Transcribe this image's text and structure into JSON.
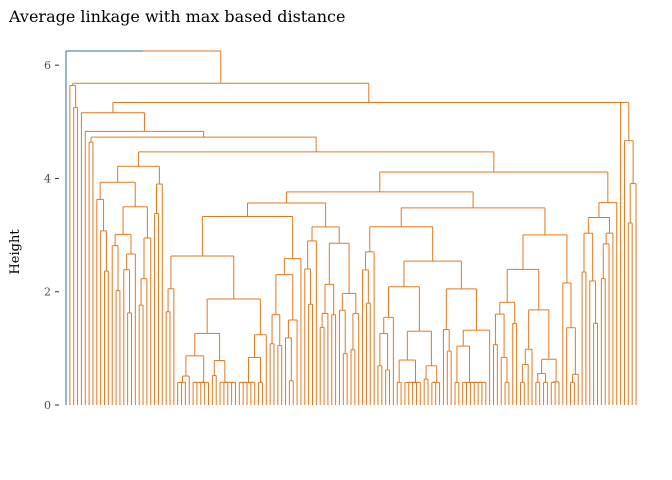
{
  "chart_data": {
    "type": "dendrogram",
    "title": "Average linkage with max based distance",
    "ylabel": "Height",
    "xlabel": "",
    "ylim": [
      0,
      6.25
    ],
    "yticks": [
      0,
      2,
      4,
      6
    ],
    "leaf_count": 149,
    "root_height": 6.25,
    "clusters": [
      {
        "name": "",
        "color": "#2c6fa8",
        "leaves": 1
      },
      {
        "name": "",
        "color": "#e07a1f",
        "leaves": 148
      }
    ],
    "major_merge_heights": [
      6.25,
      5.68,
      5.64,
      5.34,
      5.16,
      4.83,
      4.73,
      4.64,
      4.58,
      4.47
    ]
  }
}
